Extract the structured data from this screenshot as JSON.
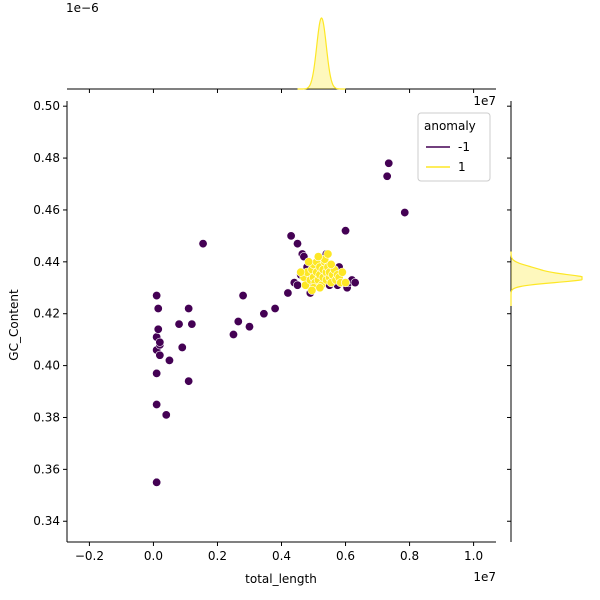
{
  "chart_data": {
    "type": "scatter",
    "kind": "jointplot",
    "xlabel": "total_length",
    "ylabel": "GC_Content",
    "x_scale_label": "1e7",
    "top_marginal_scale_label": "1e−6",
    "right_marginal_scale_label": "1e7",
    "xlim": [
      -0.27,
      1.07
    ],
    "ylim": [
      0.332,
      0.502
    ],
    "x_ticks": [
      -0.2,
      0.0,
      0.2,
      0.4,
      0.6,
      0.8,
      1.0
    ],
    "x_tick_labels": [
      "−0.2",
      "0.0",
      "0.2",
      "0.4",
      "0.6",
      "0.8",
      "1.0"
    ],
    "y_ticks": [
      0.34,
      0.36,
      0.38,
      0.4,
      0.42,
      0.44,
      0.46,
      0.48,
      0.5
    ],
    "y_tick_labels": [
      "0.34",
      "0.36",
      "0.38",
      "0.40",
      "0.42",
      "0.44",
      "0.46",
      "0.48",
      "0.50"
    ],
    "grid": false,
    "legend": {
      "title": "anomaly",
      "placement": "top-right",
      "entries": [
        {
          "label": "-1",
          "color": "#440154"
        },
        {
          "label": "1",
          "color": "#fde725"
        }
      ]
    },
    "series": [
      {
        "name": "-1",
        "color": "#440154",
        "points": [
          [
            0.01,
            0.355
          ],
          [
            0.01,
            0.385
          ],
          [
            0.01,
            0.397
          ],
          [
            0.01,
            0.406
          ],
          [
            0.01,
            0.411
          ],
          [
            0.015,
            0.414
          ],
          [
            0.015,
            0.422
          ],
          [
            0.01,
            0.427
          ],
          [
            0.02,
            0.404
          ],
          [
            0.02,
            0.408
          ],
          [
            0.02,
            0.409
          ],
          [
            0.04,
            0.381
          ],
          [
            0.05,
            0.402
          ],
          [
            0.08,
            0.416
          ],
          [
            0.09,
            0.407
          ],
          [
            0.11,
            0.394
          ],
          [
            0.11,
            0.422
          ],
          [
            0.12,
            0.416
          ],
          [
            0.155,
            0.447
          ],
          [
            0.25,
            0.412
          ],
          [
            0.265,
            0.417
          ],
          [
            0.28,
            0.427
          ],
          [
            0.3,
            0.415
          ],
          [
            0.345,
            0.42
          ],
          [
            0.38,
            0.422
          ],
          [
            0.42,
            0.428
          ],
          [
            0.43,
            0.45
          ],
          [
            0.44,
            0.432
          ],
          [
            0.45,
            0.431
          ],
          [
            0.45,
            0.447
          ],
          [
            0.46,
            0.435
          ],
          [
            0.465,
            0.443
          ],
          [
            0.47,
            0.442
          ],
          [
            0.48,
            0.438
          ],
          [
            0.49,
            0.428
          ],
          [
            0.495,
            0.434
          ],
          [
            0.5,
            0.431
          ],
          [
            0.51,
            0.437
          ],
          [
            0.52,
            0.43
          ],
          [
            0.53,
            0.44
          ],
          [
            0.54,
            0.443
          ],
          [
            0.55,
            0.431
          ],
          [
            0.56,
            0.433
          ],
          [
            0.57,
            0.436
          ],
          [
            0.575,
            0.431
          ],
          [
            0.58,
            0.438
          ],
          [
            0.6,
            0.452
          ],
          [
            0.605,
            0.43
          ],
          [
            0.61,
            0.432
          ],
          [
            0.62,
            0.433
          ],
          [
            0.63,
            0.432
          ],
          [
            0.73,
            0.473
          ],
          [
            0.735,
            0.478
          ],
          [
            0.785,
            0.459
          ]
        ]
      },
      {
        "name": "1",
        "color": "#fde725",
        "points": [
          [
            0.47,
            0.434
          ],
          [
            0.475,
            0.431
          ],
          [
            0.48,
            0.436
          ],
          [
            0.49,
            0.433
          ],
          [
            0.495,
            0.437
          ],
          [
            0.5,
            0.434
          ],
          [
            0.5,
            0.439
          ],
          [
            0.505,
            0.432
          ],
          [
            0.51,
            0.436
          ],
          [
            0.51,
            0.44
          ],
          [
            0.515,
            0.433
          ],
          [
            0.52,
            0.435
          ],
          [
            0.52,
            0.438
          ],
          [
            0.525,
            0.431
          ],
          [
            0.53,
            0.434
          ],
          [
            0.53,
            0.437
          ],
          [
            0.535,
            0.44
          ],
          [
            0.54,
            0.433
          ],
          [
            0.54,
            0.436
          ],
          [
            0.545,
            0.438
          ],
          [
            0.55,
            0.434
          ],
          [
            0.55,
            0.436
          ],
          [
            0.555,
            0.432
          ],
          [
            0.56,
            0.435
          ],
          [
            0.565,
            0.437
          ],
          [
            0.57,
            0.433
          ],
          [
            0.575,
            0.435
          ],
          [
            0.58,
            0.434
          ],
          [
            0.585,
            0.432
          ],
          [
            0.59,
            0.436
          ],
          [
            0.5,
            0.43
          ],
          [
            0.52,
            0.43
          ],
          [
            0.535,
            0.441
          ],
          [
            0.555,
            0.439
          ],
          [
            0.485,
            0.44
          ],
          [
            0.46,
            0.436
          ],
          [
            0.6,
            0.432
          ],
          [
            0.545,
            0.443
          ],
          [
            0.515,
            0.442
          ],
          [
            0.495,
            0.429
          ]
        ]
      }
    ],
    "marginal_x": {
      "peak_center": 0.525,
      "peak_width": 0.015,
      "color": "#fde725"
    },
    "marginal_y": {
      "peak_center": 0.4335,
      "peak_width": 0.0015,
      "color": "#fde725"
    }
  }
}
